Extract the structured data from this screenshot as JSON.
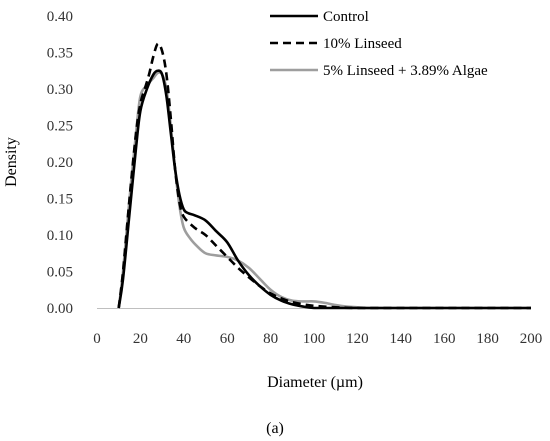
{
  "chart_data": {
    "type": "line",
    "xlabel": "Diameter (µm)",
    "ylabel": "Density",
    "xlim": [
      0,
      200
    ],
    "ylim": [
      0,
      0.4
    ],
    "x_ticks": [
      0,
      20,
      40,
      60,
      80,
      100,
      120,
      140,
      160,
      180,
      200
    ],
    "y_ticks": [
      "0.00",
      "0.05",
      "0.10",
      "0.15",
      "0.20",
      "0.25",
      "0.30",
      "0.35",
      "0.40"
    ],
    "grid": false,
    "legend_position": "top-right",
    "caption": "(a)",
    "series": [
      {
        "name": "Control",
        "color": "#000000",
        "dash": "solid",
        "points": [
          [
            10,
            0.0
          ],
          [
            12,
            0.04
          ],
          [
            15,
            0.13
          ],
          [
            18,
            0.22
          ],
          [
            20,
            0.27
          ],
          [
            23,
            0.3
          ],
          [
            26,
            0.32
          ],
          [
            28,
            0.325
          ],
          [
            30,
            0.32
          ],
          [
            32,
            0.29
          ],
          [
            34,
            0.24
          ],
          [
            36,
            0.19
          ],
          [
            38,
            0.155
          ],
          [
            40,
            0.135
          ],
          [
            42,
            0.13
          ],
          [
            45,
            0.127
          ],
          [
            50,
            0.12
          ],
          [
            55,
            0.105
          ],
          [
            60,
            0.09
          ],
          [
            65,
            0.065
          ],
          [
            70,
            0.045
          ],
          [
            75,
            0.03
          ],
          [
            80,
            0.018
          ],
          [
            85,
            0.01
          ],
          [
            90,
            0.005
          ],
          [
            95,
            0.002
          ],
          [
            100,
            0.0
          ],
          [
            110,
            0.0
          ],
          [
            120,
            0.0
          ],
          [
            130,
            0.0
          ],
          [
            140,
            0.0
          ],
          [
            160,
            0.0
          ],
          [
            180,
            0.0
          ],
          [
            200,
            0.0
          ]
        ]
      },
      {
        "name": "10% Linseed",
        "color": "#000000",
        "dash": "dashed",
        "points": [
          [
            10,
            0.0
          ],
          [
            12,
            0.05
          ],
          [
            15,
            0.15
          ],
          [
            18,
            0.24
          ],
          [
            20,
            0.28
          ],
          [
            22,
            0.3
          ],
          [
            24,
            0.32
          ],
          [
            26,
            0.345
          ],
          [
            28,
            0.362
          ],
          [
            30,
            0.352
          ],
          [
            32,
            0.32
          ],
          [
            34,
            0.26
          ],
          [
            36,
            0.19
          ],
          [
            38,
            0.145
          ],
          [
            40,
            0.125
          ],
          [
            45,
            0.11
          ],
          [
            50,
            0.1
          ],
          [
            55,
            0.085
          ],
          [
            60,
            0.07
          ],
          [
            65,
            0.055
          ],
          [
            70,
            0.042
          ],
          [
            75,
            0.03
          ],
          [
            80,
            0.02
          ],
          [
            85,
            0.013
          ],
          [
            90,
            0.008
          ],
          [
            95,
            0.005
          ],
          [
            100,
            0.003
          ],
          [
            110,
            0.001
          ],
          [
            120,
            0.0
          ],
          [
            140,
            0.0
          ],
          [
            160,
            0.0
          ],
          [
            180,
            0.0
          ],
          [
            200,
            0.0
          ]
        ]
      },
      {
        "name": "5% Linseed + 3.89% Algae",
        "color": "#9e9e9e",
        "dash": "solid",
        "points": [
          [
            10,
            0.0
          ],
          [
            12,
            0.05
          ],
          [
            15,
            0.15
          ],
          [
            18,
            0.24
          ],
          [
            20,
            0.29
          ],
          [
            23,
            0.305
          ],
          [
            26,
            0.315
          ],
          [
            28,
            0.322
          ],
          [
            30,
            0.32
          ],
          [
            32,
            0.3
          ],
          [
            34,
            0.25
          ],
          [
            36,
            0.19
          ],
          [
            38,
            0.14
          ],
          [
            40,
            0.11
          ],
          [
            43,
            0.095
          ],
          [
            46,
            0.085
          ],
          [
            50,
            0.075
          ],
          [
            55,
            0.072
          ],
          [
            60,
            0.07
          ],
          [
            65,
            0.065
          ],
          [
            70,
            0.055
          ],
          [
            75,
            0.04
          ],
          [
            80,
            0.025
          ],
          [
            85,
            0.015
          ],
          [
            90,
            0.01
          ],
          [
            95,
            0.009
          ],
          [
            100,
            0.009
          ],
          [
            105,
            0.007
          ],
          [
            110,
            0.004
          ],
          [
            115,
            0.002
          ],
          [
            120,
            0.001
          ],
          [
            125,
            0.0
          ],
          [
            140,
            0.0
          ],
          [
            160,
            0.0
          ],
          [
            180,
            0.0
          ],
          [
            200,
            0.0
          ]
        ]
      }
    ]
  }
}
